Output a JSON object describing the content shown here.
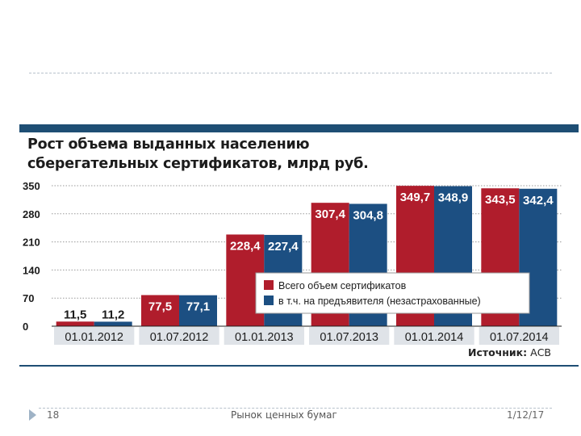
{
  "title_line1": "Рост объема выданных населению",
  "title_line2": "сберегательных сертификатов, млрд руб.",
  "source_label": "Источник:",
  "source_value": "АСВ",
  "footer": {
    "page_number": "18",
    "title": "Рынок ценных бумаг",
    "date": "1/12/17"
  },
  "colors": {
    "series1": "#b01d2c",
    "series2": "#1c4f82",
    "accent": "#1e4e74"
  },
  "chart_data": {
    "type": "bar",
    "title": "Рост объема выданных населению сберегательных сертификатов, млрд руб.",
    "categories": [
      "01.01.2012",
      "01.07.2012",
      "01.01.2013",
      "01.07.2013",
      "01.01.2014",
      "01.07.2014"
    ],
    "series": [
      {
        "name": "Всего объем сертификатов",
        "values": [
          11.5,
          77.5,
          228.4,
          307.4,
          349.7,
          343.5
        ],
        "labels": [
          "11,5",
          "77,5",
          "228,4",
          "307,4",
          "349,7",
          "343,5"
        ]
      },
      {
        "name": "в т.ч. на предъявителя (незастрахованные)",
        "values": [
          11.2,
          77.1,
          227.4,
          304.8,
          348.9,
          342.4
        ],
        "labels": [
          "11,2",
          "77,1",
          "227,4",
          "304,8",
          "348,9",
          "342,4"
        ]
      }
    ],
    "yticks": [
      0,
      70,
      140,
      210,
      280,
      350
    ],
    "ylim": [
      0,
      350
    ],
    "grid": true,
    "legend_position": "inside-middle-right",
    "xlabel": "",
    "ylabel": ""
  }
}
